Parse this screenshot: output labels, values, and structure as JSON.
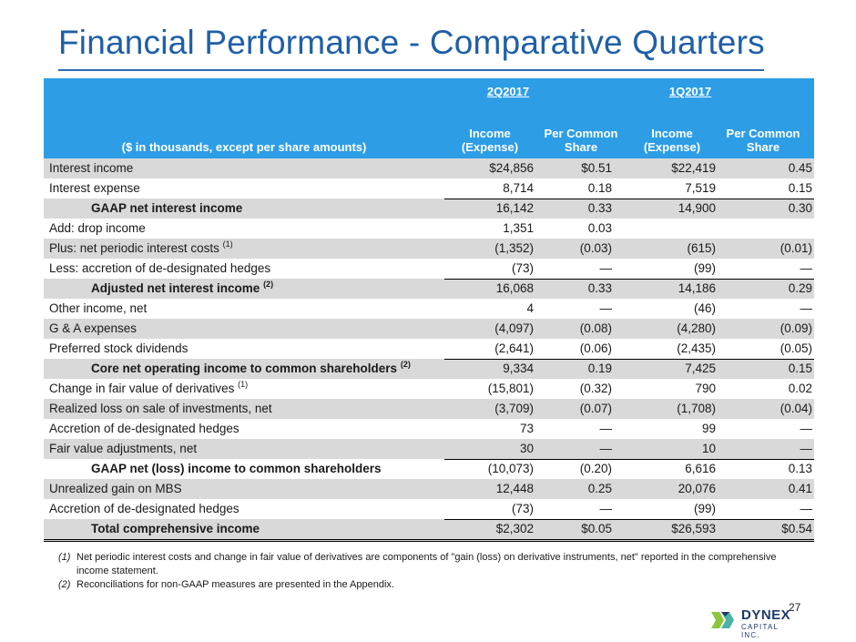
{
  "title": "Financial Performance - Comparative Quarters",
  "table": {
    "periods": [
      "2Q2017",
      "1Q2017"
    ],
    "column_headers": [
      "Income (Expense)",
      "Per Common Share",
      "Income (Expense)",
      "Per Common Share"
    ],
    "description_header": "($ in thousands, except per share amounts)",
    "rows": [
      {
        "label": "Interest income",
        "marker": "",
        "values": [
          "$24,856",
          "$0.51",
          "$22,419",
          "0.45"
        ]
      },
      {
        "label": "Interest expense",
        "marker": "",
        "values": [
          "8,714",
          "0.18",
          "7,519",
          "0.15"
        ]
      },
      {
        "label": "GAAP net interest income",
        "marker": "",
        "values": [
          "16,142",
          "0.33",
          "14,900",
          "0.30"
        ]
      },
      {
        "label": "Add: drop income",
        "marker": "",
        "values": [
          "1,351",
          "0.03",
          "",
          ""
        ]
      },
      {
        "label": "Plus: net periodic interest costs",
        "marker": "(1)",
        "values": [
          "(1,352)",
          "(0.03)",
          "(615)",
          "(0.01)"
        ]
      },
      {
        "label": "Less: accretion of de-designated hedges",
        "marker": "",
        "values": [
          "(73)",
          "—",
          "(99)",
          "—"
        ]
      },
      {
        "label": "Adjusted net interest income",
        "marker": "(2)",
        "values": [
          "16,068",
          "0.33",
          "14,186",
          "0.29"
        ]
      },
      {
        "label": "Other income, net",
        "marker": "",
        "values": [
          "4",
          "—",
          "(46)",
          "—"
        ]
      },
      {
        "label": "G & A expenses",
        "marker": "",
        "values": [
          "(4,097)",
          "(0.08)",
          "(4,280)",
          "(0.09)"
        ]
      },
      {
        "label": "Preferred stock dividends",
        "marker": "",
        "values": [
          "(2,641)",
          "(0.06)",
          "(2,435)",
          "(0.05)"
        ]
      },
      {
        "label": "Core net operating income to common shareholders",
        "marker": "(2)",
        "values": [
          "9,334",
          "0.19",
          "7,425",
          "0.15"
        ]
      },
      {
        "label": "Change in fair value of derivatives",
        "marker": "(1)",
        "values": [
          "(15,801)",
          "(0.32)",
          "790",
          "0.02"
        ]
      },
      {
        "label": "Realized loss on sale of investments, net",
        "marker": "",
        "values": [
          "(3,709)",
          "(0.07)",
          "(1,708)",
          "(0.04)"
        ]
      },
      {
        "label": "Accretion of de-designated hedges",
        "marker": "",
        "values": [
          "73",
          "—",
          "99",
          "—"
        ]
      },
      {
        "label": "Fair value adjustments, net",
        "marker": "",
        "values": [
          "30",
          "—",
          "10",
          "—"
        ]
      },
      {
        "label": "GAAP net (loss) income to common shareholders",
        "marker": "",
        "values": [
          "(10,073)",
          "(0.20)",
          "6,616",
          "0.13"
        ]
      },
      {
        "label": "Unrealized gain on MBS",
        "marker": "",
        "values": [
          "12,448",
          "0.25",
          "20,076",
          "0.41"
        ]
      },
      {
        "label": "Accretion of de-designated hedges",
        "marker": "",
        "values": [
          "(73)",
          "—",
          "(99)",
          "—"
        ]
      },
      {
        "label": "Total comprehensive income",
        "marker": "",
        "values": [
          "$2,302",
          "$0.05",
          "$26,593",
          "$0.54"
        ]
      }
    ]
  },
  "footnotes": [
    {
      "marker": "(1)",
      "text": "Net periodic interest costs and change in fair value of derivatives are components of \"gain (loss) on derivative instruments, net\" reported in the comprehensive income statement."
    },
    {
      "marker": "(2)",
      "text": "Reconciliations for non-GAAP measures are presented in the Appendix."
    }
  ],
  "page_number": "27",
  "logo": {
    "name": "DYNEX",
    "tagline": "CAPITAL INC."
  },
  "colors": {
    "title": "#1f5fa8",
    "header_band": "#2d9de6",
    "row_shade": "#d9d9d9",
    "logo_navy": "#1f3a6e",
    "logo_teal": "#4bb3a7",
    "logo_green": "#8cc63f"
  }
}
